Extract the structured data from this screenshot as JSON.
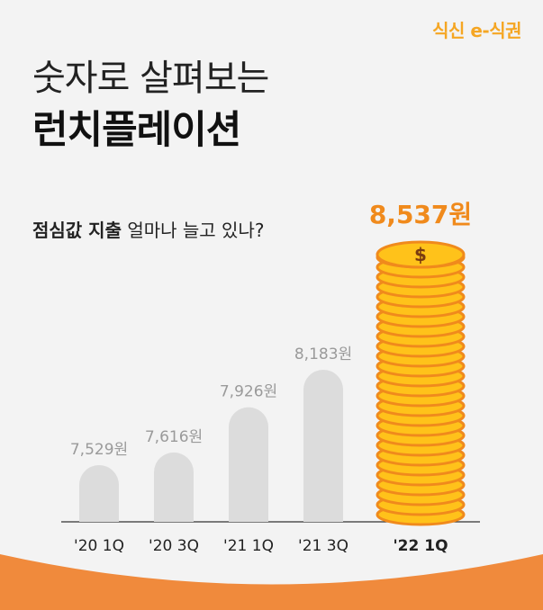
{
  "brand": {
    "logo_text": "식신 e-식권",
    "accent": "#f5a623"
  },
  "title": {
    "line1": "숫자로 살펴보는",
    "line2": "런치플레이션"
  },
  "question": {
    "bold": "점심값 지출",
    "rest": " 얼마나 늘고 있나?"
  },
  "chart_data": {
    "type": "bar",
    "categories": [
      "'20 1Q",
      "'20 3Q",
      "'21 1Q",
      "'21 3Q",
      "'22 1Q"
    ],
    "values": [
      7529,
      7616,
      7926,
      8183,
      8537
    ],
    "value_labels": [
      "7,529원",
      "7,616원",
      "7,926원",
      "8,183원",
      "8,537원"
    ],
    "highlight_index": 4,
    "highlight_style": "coin-stack",
    "colors": {
      "bar": "#dcdcdc",
      "coin": "#ffc21a",
      "coin_edge": "#f08a1c",
      "highlight_label": "#f08a1c",
      "label": "#9a9a9a"
    }
  }
}
